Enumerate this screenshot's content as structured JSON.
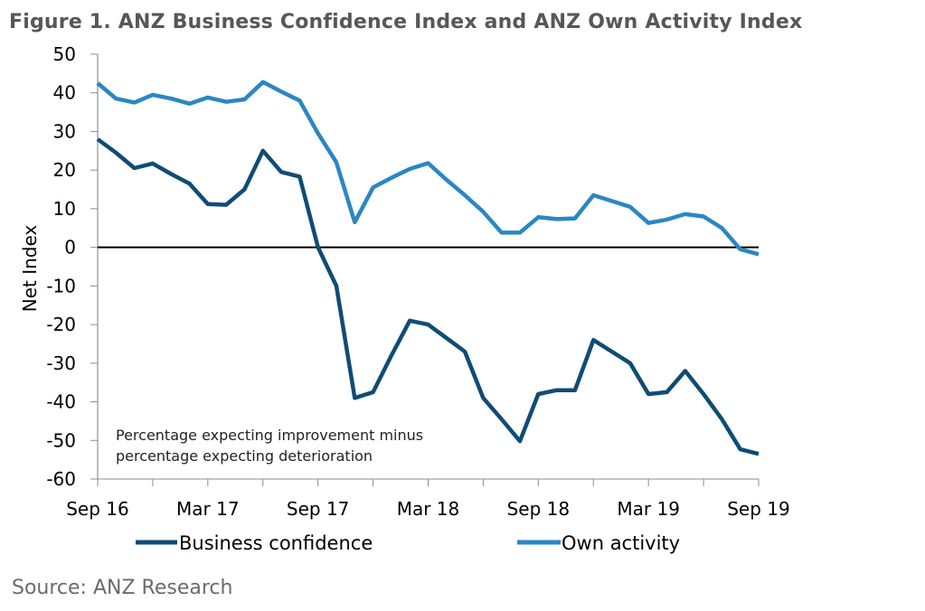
{
  "title": "Figure 1. ANZ Business Confidence Index and ANZ Own Activity Index",
  "source": "Source: ANZ Research",
  "chart_data": {
    "type": "line",
    "title": "Figure 1. ANZ Business Confidence Index and ANZ Own Activity Index",
    "xlabel": "",
    "ylabel": "Net Index",
    "ylim": [
      -60,
      50
    ],
    "yticks": [
      50,
      40,
      30,
      20,
      10,
      0,
      -10,
      -20,
      -30,
      -40,
      -50,
      -60
    ],
    "ytick_labels": [
      "50",
      "40",
      "30",
      "20",
      "10",
      "0",
      "-10",
      "-20",
      "-30",
      "-40",
      "-50",
      "-60"
    ],
    "x_tick_labels": [
      "Sep 16",
      "Mar 17",
      "Sep 17",
      "Mar 18",
      "Sep 18",
      "Mar 19",
      "Sep 19"
    ],
    "x_label_months": [
      0,
      6,
      12,
      18,
      24,
      30,
      36
    ],
    "x_minor_tick_step_months": 3,
    "x_range_months": [
      0,
      36
    ],
    "annotation": [
      "Percentage expecting improvement minus",
      "percentage expecting deterioration"
    ],
    "legend_position": "bottom",
    "zero_line": true,
    "series": [
      {
        "name": "Business confidence",
        "color": "#0f4c75",
        "values": [
          28,
          24.5,
          20.5,
          21.7,
          19,
          16.5,
          11.2,
          11,
          15,
          25,
          19.5,
          18.3,
          0,
          -10,
          -39,
          -37.5,
          -28,
          -19,
          -20,
          -23.5,
          -27,
          -39,
          -44.5,
          -50.2,
          -38,
          -37,
          -37,
          -24,
          -27,
          -30,
          -38,
          -37.5,
          -32,
          -38,
          -44.5,
          -52.3,
          -53.5
        ]
      },
      {
        "name": "Own activity",
        "color": "#2b86c5",
        "values": [
          42.5,
          38.5,
          37.5,
          39.5,
          38.5,
          37.2,
          38.8,
          37.7,
          38.3,
          42.8,
          40.3,
          38,
          29.5,
          22,
          6.5,
          15.5,
          18,
          20.3,
          21.8,
          17.5,
          13.5,
          9.2,
          3.8,
          3.8,
          7.8,
          7.3,
          7.5,
          13.5,
          12,
          10.5,
          6.3,
          7.2,
          8.6,
          8,
          5,
          -0.5,
          -1.8
        ]
      }
    ]
  }
}
